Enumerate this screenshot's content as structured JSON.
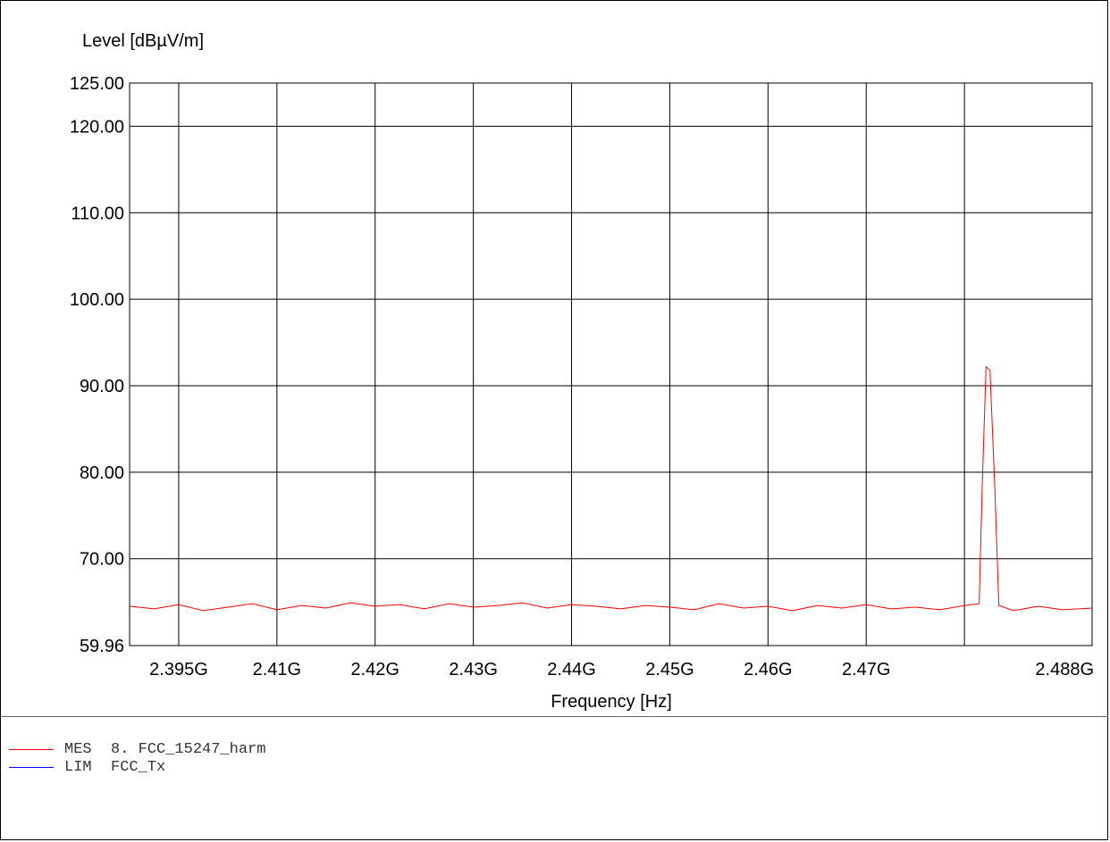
{
  "chart_data": {
    "type": "line",
    "ylabel": "Level [dBµV/m]",
    "xlabel": "Frequency [Hz]",
    "x_range": [
      2390000000,
      2488000000
    ],
    "ylim": [
      59.96,
      125.0
    ],
    "y_ticks": [
      {
        "value": 125.0,
        "label": "125.00"
      },
      {
        "value": 120.0,
        "label": "120.00"
      },
      {
        "value": 110.0,
        "label": "110.00"
      },
      {
        "value": 100.0,
        "label": "100.00"
      },
      {
        "value": 90.0,
        "label": "90.00"
      },
      {
        "value": 80.0,
        "label": "80.00"
      },
      {
        "value": 70.0,
        "label": "70.00"
      },
      {
        "value": 59.96,
        "label": "59.96"
      }
    ],
    "x_ticks": [
      {
        "value": 2395000000,
        "label": "2.395G"
      },
      {
        "value": 2405000000,
        "label": "2.41G"
      },
      {
        "value": 2415000000,
        "label": "2.42G"
      },
      {
        "value": 2425000000,
        "label": "2.43G"
      },
      {
        "value": 2435000000,
        "label": "2.44G"
      },
      {
        "value": 2445000000,
        "label": "2.45G"
      },
      {
        "value": 2455000000,
        "label": "2.46G"
      },
      {
        "value": 2465000000,
        "label": "2.47G"
      },
      {
        "value": 2488000000,
        "label": "2.488G"
      }
    ],
    "x_gridlines": [
      2395000000,
      2405000000,
      2415000000,
      2425000000,
      2435000000,
      2445000000,
      2455000000,
      2465000000,
      2475000000
    ],
    "grid": true,
    "series": [
      {
        "name": "MES",
        "color": "#ff0000",
        "x": [
          2390000000,
          2392500000,
          2395000000,
          2397500000,
          2400000000,
          2402500000,
          2405000000,
          2407500000,
          2410000000,
          2412500000,
          2415000000,
          2417500000,
          2420000000,
          2422500000,
          2425000000,
          2427500000,
          2430000000,
          2432500000,
          2435000000,
          2437500000,
          2440000000,
          2442500000,
          2445000000,
          2447500000,
          2450000000,
          2452500000,
          2455000000,
          2457500000,
          2460000000,
          2462500000,
          2465000000,
          2467500000,
          2470000000,
          2472500000,
          2475000000,
          2476500000,
          2476800000,
          2477200000,
          2477600000,
          2478100000,
          2478500000,
          2480000000,
          2482500000,
          2485000000,
          2488000000
        ],
        "values": [
          64.5,
          64.2,
          64.7,
          64.0,
          64.4,
          64.8,
          64.1,
          64.6,
          64.3,
          64.9,
          64.5,
          64.7,
          64.2,
          64.8,
          64.4,
          64.6,
          64.9,
          64.3,
          64.7,
          64.5,
          64.2,
          64.6,
          64.4,
          64.1,
          64.8,
          64.3,
          64.5,
          64.0,
          64.6,
          64.3,
          64.7,
          64.2,
          64.4,
          64.1,
          64.6,
          64.8,
          78.0,
          92.2,
          91.8,
          78.0,
          64.6,
          64.0,
          64.5,
          64.1,
          64.3
        ]
      },
      {
        "name": "LIM",
        "color": "#0000ff",
        "x": [],
        "values": []
      }
    ],
    "legend": [
      {
        "code": "MES",
        "text": "8. FCC_15247_harm",
        "color": "#ff0000"
      },
      {
        "code": "LIM",
        "text": "FCC_Tx",
        "color": "#0000ff"
      }
    ]
  }
}
